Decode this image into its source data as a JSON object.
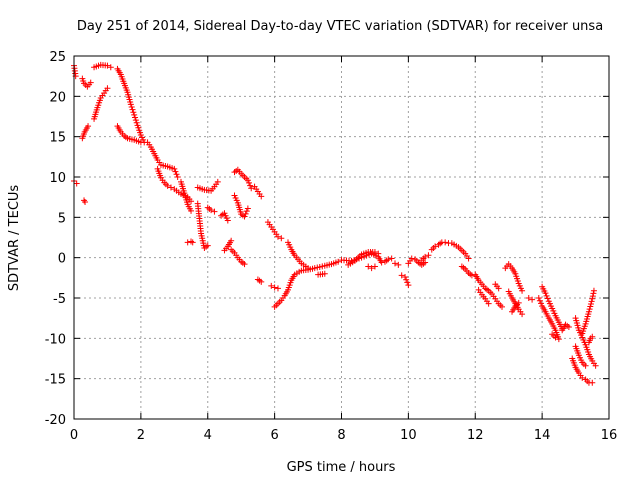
{
  "chart_data": {
    "type": "scatter",
    "title": "Day 251 of 2014, Sidereal Day-to-day VTEC variation (SDTVAR) for receiver unsa",
    "xlabel": "GPS time / hours",
    "ylabel": "SDTVAR / TECUs",
    "xlim": [
      0,
      16
    ],
    "ylim": [
      -20,
      25
    ],
    "xticks": [
      0,
      2,
      4,
      6,
      8,
      10,
      12,
      14,
      16
    ],
    "yticks": [
      -20,
      -15,
      -10,
      -5,
      0,
      5,
      10,
      15,
      20,
      25
    ],
    "grid": true,
    "marker": "+",
    "marker_color": "#ff0000",
    "series": [
      {
        "name": "SDTVAR",
        "tracks": [
          [
            [
              0.0,
              23.8
            ],
            [
              0.05,
              22.5
            ]
          ],
          [
            [
              0.0,
              9.5
            ],
            [
              0.08,
              9.2
            ]
          ],
          [
            [
              0.25,
              22.2
            ],
            [
              0.3,
              21.6
            ],
            [
              0.4,
              21.2
            ],
            [
              0.5,
              21.7
            ]
          ],
          [
            [
              0.25,
              14.8
            ],
            [
              0.32,
              15.6
            ],
            [
              0.42,
              16.3
            ]
          ],
          [
            [
              0.3,
              7.1
            ],
            [
              0.33,
              6.9
            ]
          ],
          [
            [
              0.6,
              23.6
            ],
            [
              0.8,
              23.9
            ],
            [
              1.0,
              23.8
            ],
            [
              1.1,
              23.6
            ]
          ],
          [
            [
              0.6,
              17.2
            ],
            [
              0.7,
              18.6
            ],
            [
              0.8,
              19.8
            ],
            [
              0.9,
              20.4
            ],
            [
              1.0,
              21.0
            ]
          ],
          [
            [
              1.3,
              23.4
            ],
            [
              1.4,
              22.7
            ],
            [
              1.5,
              21.6
            ],
            [
              1.6,
              20.5
            ],
            [
              1.7,
              19.0
            ],
            [
              1.8,
              17.7
            ],
            [
              1.9,
              16.4
            ],
            [
              2.0,
              15.2
            ],
            [
              2.1,
              14.3
            ],
            [
              2.2,
              14.3
            ],
            [
              2.3,
              13.7
            ],
            [
              2.5,
              12.1
            ],
            [
              2.6,
              11.5
            ],
            [
              2.8,
              11.3
            ],
            [
              3.0,
              11.0
            ],
            [
              3.1,
              10.0
            ]
          ],
          [
            [
              1.3,
              16.3
            ],
            [
              1.4,
              15.6
            ],
            [
              1.5,
              15.1
            ],
            [
              1.6,
              14.8
            ],
            [
              1.8,
              14.6
            ],
            [
              2.0,
              14.3
            ]
          ],
          [
            [
              2.5,
              11.0
            ],
            [
              2.6,
              9.9
            ],
            [
              2.7,
              9.3
            ],
            [
              2.8,
              8.9
            ],
            [
              2.9,
              8.7
            ],
            [
              3.0,
              8.5
            ],
            [
              3.2,
              7.9
            ],
            [
              3.4,
              7.5
            ],
            [
              3.5,
              7.0
            ]
          ],
          [
            [
              3.2,
              9.4
            ],
            [
              3.3,
              8.0
            ],
            [
              3.4,
              6.6
            ],
            [
              3.5,
              5.8
            ]
          ],
          [
            [
              3.4,
              1.9
            ],
            [
              3.5,
              2.0
            ],
            [
              3.55,
              1.9
            ]
          ],
          [
            [
              3.7,
              6.7
            ],
            [
              3.8,
              3.0
            ],
            [
              3.9,
              1.2
            ],
            [
              4.0,
              1.5
            ]
          ],
          [
            [
              3.7,
              8.7
            ],
            [
              3.9,
              8.4
            ],
            [
              4.1,
              8.3
            ],
            [
              4.2,
              8.8
            ],
            [
              4.3,
              9.4
            ]
          ],
          [
            [
              4.0,
              6.2
            ],
            [
              4.1,
              5.9
            ],
            [
              4.2,
              5.7
            ]
          ],
          [
            [
              4.4,
              5.2
            ],
            [
              4.5,
              5.5
            ],
            [
              4.6,
              4.6
            ]
          ],
          [
            [
              4.5,
              0.9
            ],
            [
              4.6,
              1.4
            ],
            [
              4.7,
              2.1
            ]
          ],
          [
            [
              4.7,
              1.0
            ],
            [
              4.8,
              0.6
            ],
            [
              4.9,
              0.0
            ],
            [
              5.0,
              -0.5
            ],
            [
              5.1,
              -0.8
            ]
          ],
          [
            [
              4.8,
              10.6
            ],
            [
              4.9,
              10.9
            ],
            [
              5.0,
              10.4
            ],
            [
              5.2,
              9.6
            ],
            [
              5.3,
              8.6
            ]
          ],
          [
            [
              4.8,
              7.7
            ],
            [
              4.9,
              6.8
            ],
            [
              5.0,
              5.4
            ],
            [
              5.1,
              5.1
            ],
            [
              5.2,
              6.1
            ]
          ],
          [
            [
              5.4,
              8.8
            ],
            [
              5.5,
              8.2
            ],
            [
              5.6,
              7.6
            ]
          ],
          [
            [
              5.5,
              -2.7
            ],
            [
              5.6,
              -3.0
            ]
          ],
          [
            [
              5.8,
              4.4
            ],
            [
              5.9,
              3.8
            ],
            [
              6.0,
              3.2
            ],
            [
              6.1,
              2.6
            ],
            [
              6.2,
              2.4
            ]
          ],
          [
            [
              5.9,
              -3.5
            ],
            [
              6.0,
              -3.7
            ],
            [
              6.1,
              -3.8
            ]
          ],
          [
            [
              6.0,
              -6.1
            ],
            [
              6.1,
              -5.7
            ],
            [
              6.2,
              -5.3
            ],
            [
              6.3,
              -4.7
            ],
            [
              6.4,
              -4.0
            ],
            [
              6.5,
              -2.8
            ],
            [
              6.6,
              -2.1
            ],
            [
              6.8,
              -1.6
            ],
            [
              7.0,
              -1.5
            ],
            [
              7.2,
              -1.3
            ],
            [
              7.5,
              -1.0
            ],
            [
              7.7,
              -0.8
            ],
            [
              7.9,
              -0.5
            ],
            [
              8.0,
              -0.3
            ],
            [
              8.3,
              -0.4
            ],
            [
              8.6,
              0.0
            ],
            [
              8.9,
              0.5
            ],
            [
              9.1,
              0.1
            ],
            [
              9.2,
              -0.6
            ]
          ],
          [
            [
              6.4,
              1.9
            ],
            [
              6.5,
              1.0
            ],
            [
              6.6,
              0.3
            ],
            [
              6.8,
              -0.7
            ],
            [
              7.0,
              -1.3
            ]
          ],
          [
            [
              7.3,
              -2.1
            ],
            [
              7.5,
              -2.0
            ]
          ],
          [
            [
              8.2,
              -0.9
            ],
            [
              8.4,
              -0.4
            ],
            [
              8.6,
              0.4
            ],
            [
              8.8,
              0.7
            ],
            [
              9.0,
              0.7
            ],
            [
              9.1,
              0.5
            ]
          ],
          [
            [
              8.8,
              -1.1
            ],
            [
              8.9,
              -1.3
            ],
            [
              9.0,
              -1.1
            ]
          ],
          [
            [
              9.3,
              -0.5
            ],
            [
              9.4,
              -0.2
            ],
            [
              9.5,
              -0.1
            ]
          ],
          [
            [
              9.6,
              -0.7
            ],
            [
              9.7,
              -0.9
            ]
          ],
          [
            [
              9.8,
              -2.2
            ],
            [
              9.9,
              -2.4
            ],
            [
              10.0,
              -3.4
            ]
          ],
          [
            [
              10.0,
              -0.7
            ],
            [
              10.1,
              -0.1
            ],
            [
              10.2,
              -0.2
            ],
            [
              10.3,
              -0.6
            ],
            [
              10.4,
              -0.9
            ],
            [
              10.5,
              -0.6
            ]
          ],
          [
            [
              10.4,
              -0.3
            ],
            [
              10.5,
              0.1
            ],
            [
              10.6,
              0.3
            ]
          ],
          [
            [
              10.7,
              1.0
            ],
            [
              10.8,
              1.4
            ],
            [
              10.9,
              1.6
            ],
            [
              11.0,
              1.9
            ],
            [
              11.1,
              1.9
            ],
            [
              11.2,
              1.8
            ],
            [
              11.3,
              1.8
            ],
            [
              11.5,
              1.3
            ],
            [
              11.7,
              0.5
            ],
            [
              11.8,
              -0.1
            ]
          ],
          [
            [
              11.6,
              -1.1
            ],
            [
              11.7,
              -1.4
            ],
            [
              11.8,
              -1.9
            ],
            [
              11.9,
              -2.2
            ]
          ],
          [
            [
              12.0,
              -2.1
            ],
            [
              12.1,
              -2.8
            ],
            [
              12.2,
              -3.3
            ],
            [
              12.3,
              -3.8
            ],
            [
              12.4,
              -4.1
            ],
            [
              12.5,
              -4.5
            ],
            [
              12.6,
              -5.1
            ],
            [
              12.7,
              -5.7
            ],
            [
              12.8,
              -6.1
            ]
          ],
          [
            [
              12.1,
              -4.0
            ],
            [
              12.2,
              -4.6
            ],
            [
              12.3,
              -5.1
            ],
            [
              12.4,
              -5.7
            ]
          ],
          [
            [
              12.6,
              -3.3
            ],
            [
              12.7,
              -3.8
            ]
          ],
          [
            [
              12.9,
              -1.3
            ],
            [
              13.0,
              -0.8
            ],
            [
              13.1,
              -1.3
            ],
            [
              13.2,
              -2.0
            ],
            [
              13.3,
              -3.2
            ],
            [
              13.4,
              -4.1
            ]
          ],
          [
            [
              13.0,
              -4.2
            ],
            [
              13.1,
              -5.0
            ],
            [
              13.2,
              -5.7
            ],
            [
              13.3,
              -6.4
            ],
            [
              13.4,
              -7.0
            ]
          ],
          [
            [
              13.1,
              -6.7
            ],
            [
              13.2,
              -6.0
            ],
            [
              13.3,
              -5.6
            ]
          ],
          [
            [
              13.6,
              -5.0
            ],
            [
              13.7,
              -5.2
            ]
          ],
          [
            [
              13.9,
              -5.0
            ],
            [
              14.0,
              -6.0
            ],
            [
              14.1,
              -6.7
            ],
            [
              14.2,
              -7.5
            ],
            [
              14.3,
              -8.2
            ],
            [
              14.4,
              -9.0
            ],
            [
              14.5,
              -10.1
            ]
          ],
          [
            [
              14.0,
              -3.6
            ],
            [
              14.1,
              -4.4
            ],
            [
              14.2,
              -5.4
            ],
            [
              14.3,
              -6.3
            ],
            [
              14.4,
              -7.2
            ],
            [
              14.5,
              -8.0
            ],
            [
              14.6,
              -8.8
            ]
          ],
          [
            [
              14.3,
              -9.5
            ],
            [
              14.4,
              -9.9
            ]
          ],
          [
            [
              14.6,
              -9.0
            ],
            [
              14.7,
              -8.3
            ],
            [
              14.8,
              -8.6
            ]
          ],
          [
            [
              14.9,
              -12.5
            ],
            [
              15.0,
              -13.6
            ],
            [
              15.1,
              -14.3
            ],
            [
              15.2,
              -14.9
            ],
            [
              15.3,
              -15.1
            ],
            [
              15.4,
              -15.5
            ],
            [
              15.5,
              -15.5
            ]
          ],
          [
            [
              15.0,
              -7.5
            ],
            [
              15.1,
              -9.0
            ],
            [
              15.2,
              -9.9
            ],
            [
              15.3,
              -10.8
            ],
            [
              15.4,
              -12.0
            ],
            [
              15.5,
              -12.8
            ],
            [
              15.6,
              -13.4
            ]
          ],
          [
            [
              15.0,
              -11.0
            ],
            [
              15.1,
              -12.1
            ],
            [
              15.2,
              -13.0
            ],
            [
              15.3,
              -13.4
            ]
          ],
          [
            [
              15.4,
              -10.5
            ],
            [
              15.45,
              -10.0
            ],
            [
              15.5,
              -9.8
            ]
          ],
          [
            [
              15.2,
              -9.4
            ],
            [
              15.3,
              -8.2
            ],
            [
              15.4,
              -6.7
            ],
            [
              15.5,
              -5.1
            ],
            [
              15.55,
              -4.1
            ]
          ]
        ]
      }
    ]
  }
}
